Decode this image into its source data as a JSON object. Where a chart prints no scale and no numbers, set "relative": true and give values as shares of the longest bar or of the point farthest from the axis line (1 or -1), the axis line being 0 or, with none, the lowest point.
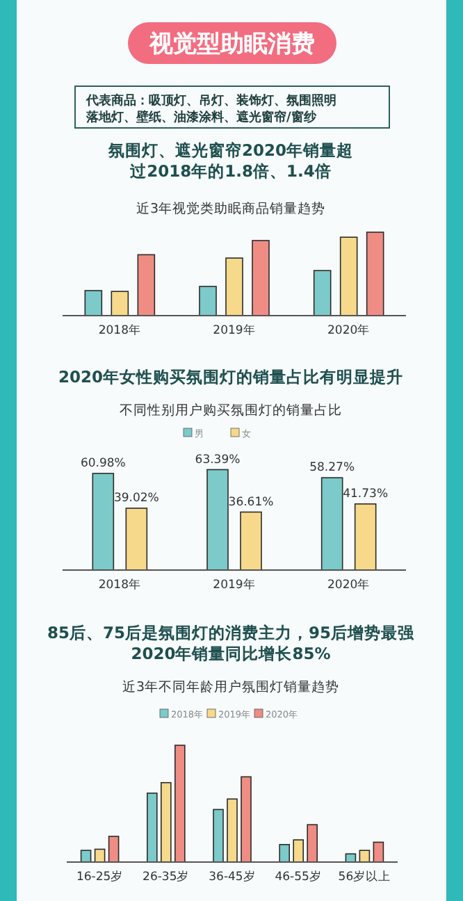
{
  "chart_data": [
    {
      "type": "other",
      "title": "视觉型助眠消费",
      "annotations": [
        "代表商品：吸顶灯、吊灯、装饰灯、氛围照明",
        "落地灯、壁纸、油漆涂料、遮光窗帘/窗纱"
      ]
    },
    {
      "type": "bar",
      "title": "氛围灯、遮光窗帘2020年销量超过2018年的1.8倍、1.4倍",
      "subtitle": "近3年视觉类助眠商品销量趋势",
      "relative": true,
      "categories": [
        "2018年",
        "2019年",
        "2020年"
      ],
      "series": [
        {
          "color": "#7ccaca",
          "values": [
            0.3,
            0.35,
            0.54
          ]
        },
        {
          "color": "#f6d98a",
          "values": [
            0.29,
            0.69,
            0.94
          ]
        },
        {
          "color": "#ef8d84",
          "values": [
            0.73,
            0.9,
            1.0
          ]
        }
      ]
    },
    {
      "type": "bar",
      "title": "2020年女性购买氛围灯的销量占比有明显提升",
      "subtitle": "不同性别用户购买氛围灯的销量占比",
      "categories": [
        "2018年",
        "2019年",
        "2020年"
      ],
      "tick_labels": "x",
      "legend": "top",
      "series": [
        {
          "name": "男",
          "color": "#7ccaca",
          "values": [
            60.98,
            63.39,
            58.27
          ],
          "value_labels": [
            "60.98%",
            "63.39%",
            "58.27%"
          ]
        },
        {
          "name": "女",
          "color": "#f6d98a",
          "values": [
            39.02,
            36.61,
            41.73
          ],
          "value_labels": [
            "39.02%",
            "36.61%",
            "41.73%"
          ]
        }
      ]
    },
    {
      "type": "bar",
      "title": "85后、75后是氛围灯的消费主力，95后增势最强2020年销量同比增长85%",
      "subtitle": "近3年不同年龄用户氛围灯销量趋势",
      "relative": true,
      "legend": "top",
      "categories": [
        "16-25岁",
        "26-35岁",
        "36-45岁",
        "46-55岁",
        "56岁以上"
      ],
      "series": [
        {
          "name": "2018年",
          "color": "#7ccaca",
          "values": [
            0.1,
            0.59,
            0.45,
            0.15,
            0.07
          ]
        },
        {
          "name": "2019年",
          "color": "#f6d98a",
          "values": [
            0.11,
            0.68,
            0.54,
            0.19,
            0.1
          ]
        },
        {
          "name": "2020年",
          "color": "#ef8d84",
          "values": [
            0.22,
            1.0,
            0.73,
            0.32,
            0.17
          ]
        }
      ]
    }
  ]
}
